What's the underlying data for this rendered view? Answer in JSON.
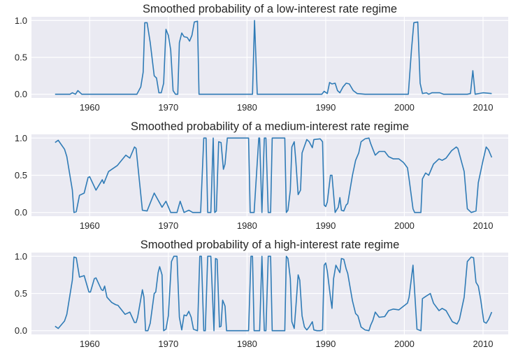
{
  "chart_data": [
    {
      "type": "line",
      "title": "Smoothed probability of a low-interest rate regime",
      "xlim": [
        1952.6,
        2013.2
      ],
      "ylim": [
        -0.05,
        1.05
      ],
      "xticks": [
        1960,
        1970,
        1980,
        1990,
        2000,
        2010
      ],
      "yticks": [
        "0.0",
        "0.5",
        "1.0"
      ],
      "grid": true,
      "line_color": "#2f7bb6",
      "background": "#eaeaf2",
      "x": [
        1955.6,
        1957.5,
        1957.8,
        1958.2,
        1958.5,
        1959,
        1966,
        1966.5,
        1966.8,
        1967.0,
        1967.3,
        1967.7,
        1968.2,
        1968.5,
        1968.8,
        1969.1,
        1969.4,
        1969.7,
        1970.0,
        1970.3,
        1970.6,
        1970.9,
        1971.2,
        1971.4,
        1971.7,
        1972,
        1972.4,
        1972.7,
        1973,
        1973.3,
        1973.7,
        1973.9,
        1980.7,
        1980.95,
        1981.3,
        1989.5,
        1989.8,
        1990.2,
        1990.5,
        1990.8,
        1991.2,
        1991.5,
        1991.8,
        1992.2,
        1992.6,
        1993,
        1993.5,
        1994,
        1995,
        2000.5,
        2000.9,
        2001.2,
        2001.7,
        2002,
        2002.3,
        2002.8,
        2003.1,
        2003.5,
        2004.5,
        2005,
        2008,
        2008.4,
        2008.7,
        2009,
        2010,
        2011.1
      ],
      "y": [
        0,
        0,
        0.02,
        0,
        0.05,
        0,
        0,
        0.1,
        0.3,
        0.97,
        0.97,
        0.7,
        0.25,
        0.22,
        0.02,
        0.02,
        0.15,
        0.88,
        0.8,
        0.6,
        0.05,
        0,
        0,
        0.7,
        0.83,
        0.78,
        0.77,
        0.72,
        0.8,
        0.98,
        0.99,
        0,
        0,
        1.0,
        0,
        0,
        0.04,
        0.01,
        0.16,
        0.14,
        0.15,
        0.05,
        0.02,
        0.1,
        0.15,
        0.14,
        0.05,
        0.01,
        0,
        0,
        0.6,
        0.97,
        0.98,
        0.15,
        0.01,
        0.02,
        0,
        0.02,
        0.02,
        0,
        0,
        0.01,
        0.32,
        0,
        0.02,
        0.01
      ]
    },
    {
      "type": "line",
      "title": "Smoothed probability of a medium-interest rate regime",
      "xlim": [
        1952.6,
        2013.2
      ],
      "ylim": [
        -0.05,
        1.05
      ],
      "xticks": [
        1960,
        1970,
        1980,
        1990,
        2000,
        2010
      ],
      "yticks": [
        "0.0",
        "0.5",
        "1.0"
      ],
      "grid": true,
      "line_color": "#2f7bb6",
      "background": "#eaeaf2",
      "x": [
        1955.6,
        1956,
        1956.8,
        1957.1,
        1957.8,
        1958.0,
        1958.3,
        1958.7,
        1959.3,
        1959.8,
        1960,
        1960.8,
        1961.6,
        1961.8,
        1962.4,
        1963.5,
        1964.6,
        1965.1,
        1965.7,
        1965.9,
        1966.7,
        1967.3,
        1968.2,
        1969.2,
        1969.7,
        1970.3,
        1971.1,
        1971.5,
        1972,
        1972.6,
        1973.1,
        1974.1,
        1974.5,
        1974.8,
        1975,
        1975.4,
        1975.7,
        1975.9,
        1976.1,
        1976.4,
        1976.7,
        1977,
        1977.2,
        1977.5,
        1980.2,
        1980.4,
        1980.9,
        1981.5,
        1981.6,
        1981.9,
        1982.2,
        1982.4,
        1982.7,
        1983,
        1983.2,
        1984.8,
        1985,
        1985.2,
        1985.5,
        1985.7,
        1986.0,
        1986.2,
        1986.5,
        1986.8,
        1987,
        1987.6,
        1987.9,
        1988.3,
        1988.5,
        1989.3,
        1989.6,
        1989.8,
        1990,
        1990.2,
        1990.6,
        1990.8,
        1991.2,
        1991.6,
        1991.8,
        1992,
        1992.3,
        1992.6,
        1992.8,
        1993.4,
        1993.8,
        1994.2,
        1994.5,
        1995,
        1995.5,
        1995.7,
        1996,
        1996.3,
        1996.8,
        1997.5,
        1998,
        1998.6,
        1999.3,
        1999.9,
        2000.4,
        2000.6,
        2001.1,
        2001.3,
        2002.1,
        2002.3,
        2002.7,
        2003.1,
        2003.7,
        2004.4,
        2004.8,
        2005.3,
        2006,
        2006.6,
        2006.8,
        2007.6,
        2008,
        2008.5,
        2009.1,
        2009.4,
        2010,
        2010.4,
        2010.7,
        2011.1
      ],
      "y": [
        0.94,
        0.97,
        0.85,
        0.75,
        0.3,
        0,
        0.01,
        0.23,
        0.26,
        0.47,
        0.48,
        0.3,
        0.44,
        0.39,
        0.55,
        0.63,
        0.77,
        0.73,
        0.88,
        0.86,
        0.03,
        0.02,
        0.26,
        0.07,
        0.15,
        0,
        0,
        0.15,
        0,
        0.03,
        0,
        0,
        1,
        1,
        0,
        0,
        1,
        0,
        0.02,
        0.95,
        0.94,
        0.58,
        0.65,
        1,
        1,
        0,
        0,
        1,
        1,
        0,
        1,
        1,
        0,
        0,
        1,
        1,
        0,
        0.03,
        0.3,
        0.88,
        0.95,
        0.7,
        0.24,
        0.3,
        0.8,
        0.98,
        0.95,
        0.87,
        0.98,
        0.99,
        0.95,
        0.1,
        0.08,
        0.14,
        0.5,
        0.5,
        0,
        0.07,
        0.2,
        0.03,
        0.02,
        0.1,
        0.12,
        0.5,
        0.7,
        0.8,
        0.95,
        0.99,
        1,
        0.93,
        0.85,
        0.77,
        0.82,
        0.82,
        0.75,
        0.72,
        0.72,
        0.67,
        0.6,
        0.45,
        0.05,
        0,
        0,
        0.45,
        0.53,
        0.5,
        0.65,
        0.72,
        0.7,
        0.73,
        0.83,
        0.88,
        0.86,
        0.55,
        0.05,
        0,
        0.02,
        0.4,
        0.7,
        0.88,
        0.84,
        0.74
      ]
    },
    {
      "type": "line",
      "title": "Smoothed probability of a high-interest rate regime",
      "xlim": [
        1952.6,
        2013.2
      ],
      "ylim": [
        -0.05,
        1.05
      ],
      "xticks": [
        1960,
        1970,
        1980,
        1990,
        2000,
        2010
      ],
      "yticks": [
        "0.0",
        "0.5",
        "1.0"
      ],
      "grid": true,
      "line_color": "#2f7bb6",
      "background": "#eaeaf2",
      "x": [
        1955.6,
        1956,
        1956.8,
        1957.1,
        1957.8,
        1958,
        1958.3,
        1958.7,
        1959.3,
        1959.9,
        1960.1,
        1960.6,
        1960.8,
        1961.5,
        1961.7,
        1961.9,
        1962.2,
        1962.8,
        1963.3,
        1963.6,
        1964.5,
        1965.1,
        1965.7,
        1965.9,
        1966.1,
        1966.7,
        1966.9,
        1967.1,
        1967.4,
        1967.7,
        1968.2,
        1968.4,
        1968.7,
        1968.9,
        1969.2,
        1969.4,
        1969.7,
        1970,
        1970.4,
        1970.7,
        1971.1,
        1971.4,
        1971.7,
        1972,
        1972.3,
        1972.6,
        1972.9,
        1973.2,
        1973.7,
        1974,
        1974.2,
        1974.5,
        1974.7,
        1975,
        1975.4,
        1975.8,
        1976,
        1976.2,
        1976.5,
        1976.7,
        1976.9,
        1977.2,
        1977.4,
        1980.2,
        1980.5,
        1980.7,
        1980.9,
        1981.6,
        1981.9,
        1982.2,
        1982.4,
        1982.7,
        1983,
        1983.2,
        1984.8,
        1985,
        1985.2,
        1985.5,
        1985.7,
        1986,
        1986.2,
        1986.5,
        1986.7,
        1987,
        1987.3,
        1987.6,
        1987.9,
        1988.3,
        1988.5,
        1988.9,
        1989.3,
        1989.6,
        1989.8,
        1990,
        1990.2,
        1990.6,
        1990.8,
        1991,
        1991.3,
        1991.8,
        1992,
        1992.3,
        1992.6,
        1992.8,
        1993.4,
        1993.8,
        1994.1,
        1994.5,
        1995,
        1995.5,
        1995.7,
        1996,
        1996.3,
        1996.8,
        1997.5,
        1998,
        1998.6,
        1999.3,
        1999.9,
        2000.4,
        2000.6,
        2001.1,
        2001.6,
        2002.1,
        2002.3,
        2002.7,
        2003.3,
        2003.7,
        2004.4,
        2004.8,
        2005.3,
        2006.1,
        2006.7,
        2007,
        2007.6,
        2008,
        2008.5,
        2008.8,
        2009.1,
        2009.4,
        2009.7,
        2010.1,
        2010.4,
        2010.7,
        2011.1
      ],
      "y": [
        0.06,
        0.03,
        0.13,
        0.22,
        0.68,
        0.99,
        0.98,
        0.72,
        0.74,
        0.52,
        0.52,
        0.7,
        0.71,
        0.55,
        0.54,
        0.6,
        0.45,
        0.38,
        0.35,
        0.34,
        0.22,
        0.25,
        0.11,
        0.11,
        0.18,
        0.55,
        0.45,
        0,
        0,
        0.1,
        0.5,
        0.52,
        0.78,
        0.86,
        0.75,
        0,
        0.02,
        0.2,
        0.93,
        1,
        1,
        0.18,
        0.01,
        0.21,
        0.2,
        0.26,
        0.18,
        0.02,
        0,
        1,
        1,
        0,
        0,
        1,
        1,
        0,
        0.97,
        0.96,
        0.05,
        0.06,
        0.41,
        0.33,
        0,
        0,
        1,
        1,
        0,
        0,
        1,
        0,
        0,
        1,
        1,
        0,
        0,
        1,
        0.97,
        0.7,
        0.12,
        0.03,
        0.3,
        0.75,
        0.68,
        0.2,
        0.05,
        0.01,
        0.05,
        0.12,
        0.01,
        0,
        0,
        0.01,
        0.88,
        0.91,
        0.8,
        0.45,
        0.3,
        0.7,
        0.88,
        0.78,
        0.97,
        0.96,
        0.83,
        0.77,
        0.4,
        0.23,
        0.2,
        0.05,
        0.01,
        0,
        0.07,
        0.14,
        0.25,
        0.18,
        0.19,
        0.27,
        0.29,
        0.28,
        0.33,
        0.37,
        0.45,
        0.88,
        0.02,
        0,
        0.43,
        0.46,
        0.5,
        0.37,
        0.27,
        0.3,
        0.27,
        0.12,
        0.09,
        0.15,
        0.45,
        0.93,
        0.99,
        0.98,
        0.65,
        0.6,
        0.42,
        0.12,
        0.1,
        0.15,
        0.25
      ]
    }
  ]
}
